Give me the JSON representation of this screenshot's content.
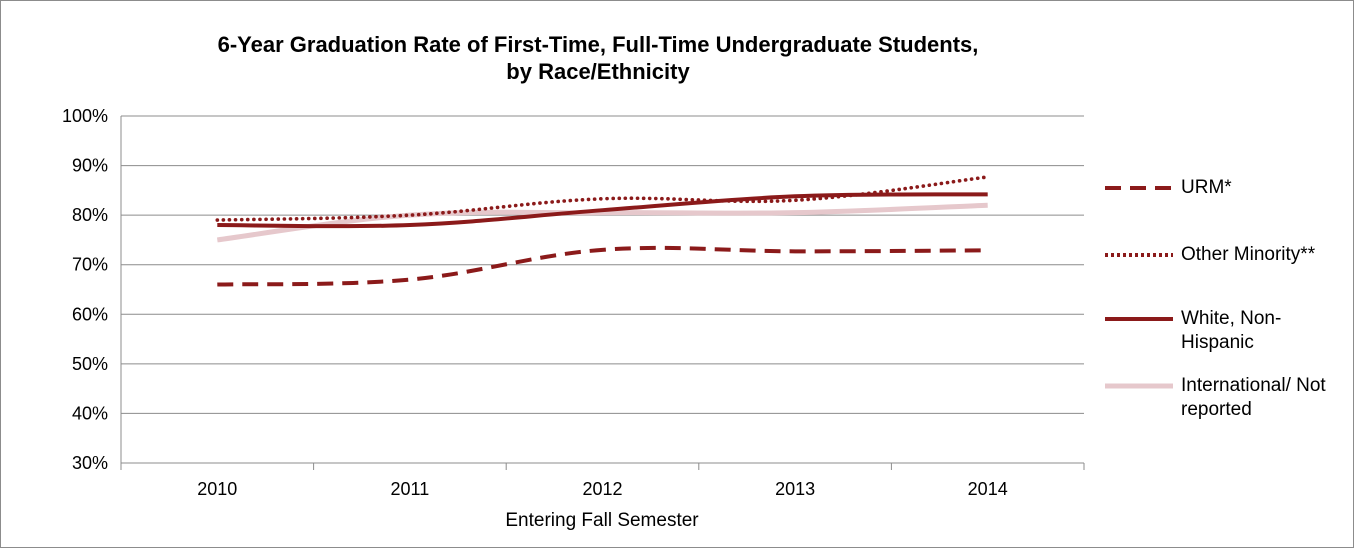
{
  "chart_data": {
    "type": "line",
    "title_lines": [
      "6-Year Graduation Rate of First-Time, Full-Time Undergraduate Students,",
      "by Race/Ethnicity"
    ],
    "xlabel": "Entering Fall Semester",
    "ylabel": "",
    "categories": [
      "2010",
      "2011",
      "2012",
      "2013",
      "2014"
    ],
    "ylim": [
      30,
      100
    ],
    "yticks": [
      "30%",
      "40%",
      "50%",
      "60%",
      "70%",
      "80%",
      "90%",
      "100%"
    ],
    "grid": true,
    "legend_position": "right",
    "series": [
      {
        "name": "URM*",
        "values": [
          66,
          67,
          73,
          72.7,
          72.9
        ],
        "color": "#8b1a1a",
        "style": "dashed"
      },
      {
        "name": "Other Minority**",
        "values": [
          79,
          80,
          83.3,
          83,
          87.7
        ],
        "color": "#8b1a1a",
        "style": "dotted"
      },
      {
        "name": "White, Non-Hispanic",
        "values": [
          78,
          78,
          81,
          83.8,
          84.2
        ],
        "color": "#8b1a1a",
        "style": "solid"
      },
      {
        "name": "International/ Not reported",
        "values": [
          75,
          80,
          80.5,
          80.5,
          82
        ],
        "color": "#e6c8cc",
        "style": "solid"
      }
    ]
  }
}
